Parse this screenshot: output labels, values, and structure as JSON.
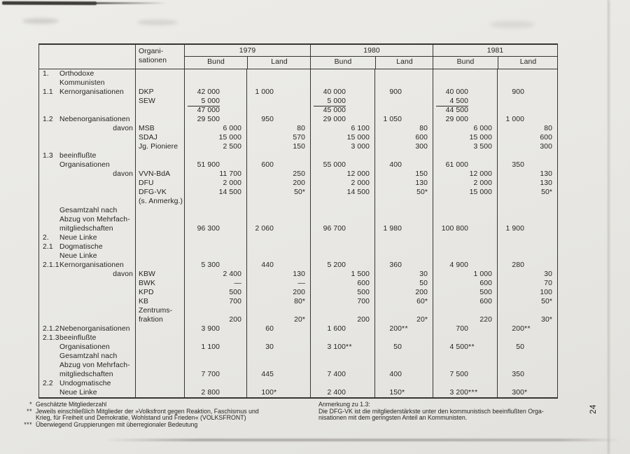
{
  "table": {
    "header": {
      "org_line1": "Organi-",
      "org_line2": "sationen",
      "years": [
        "1979",
        "1980",
        "1981"
      ],
      "bund": "Bund",
      "land": "Land"
    },
    "rows": [
      {
        "n": "1.",
        "l": "Orthodoxe"
      },
      {
        "l": "Kommunisten"
      },
      {
        "n": "1.1",
        "l": "Kernorganisationen",
        "o": "DKP",
        "c": [
          "m:42 000",
          "m:1 000",
          "m:40 000",
          "m:900",
          "m:40 000",
          "m:900"
        ]
      },
      {
        "o": "SEW",
        "c": [
          "u:5 000",
          "",
          "u:5 000",
          "",
          "u:4 500",
          ""
        ]
      },
      {
        "c": [
          "m:47 000",
          "",
          "m:45 000",
          "",
          "m:44 500",
          ""
        ]
      },
      {
        "n": "1.2",
        "l": "Nebenorganisationen",
        "c": [
          "m:29 500",
          "m:950",
          "m:29 000",
          "m:1 050",
          "m:29 000",
          "m:1 000"
        ]
      },
      {
        "l": "davon",
        "ra": true,
        "o": "MSB",
        "c": [
          "s:6 000",
          "s:80",
          "s:6 100",
          "s:80",
          "s:6 000",
          "s:80"
        ]
      },
      {
        "o": "SDAJ",
        "c": [
          "s:15 000",
          "s:570",
          "s:15 000",
          "s:600",
          "s:15 000",
          "s:600"
        ]
      },
      {
        "o": "Jg. Pioniere",
        "c": [
          "s:2 500",
          "s:150",
          "s:3 000",
          "s:300",
          "s:3 500",
          "s:300"
        ]
      },
      {
        "n": "1.3",
        "l": "beeinflußte"
      },
      {
        "l": "Organisationen",
        "c": [
          "m:51 900",
          "m:600",
          "m:55 000",
          "m:400",
          "m:61 000",
          "m:350"
        ]
      },
      {
        "l": "davon",
        "ra": true,
        "o": "VVN-BdA",
        "c": [
          "s:11 700",
          "s:250",
          "s:12 000",
          "s:150",
          "s:12 000",
          "s:130"
        ]
      },
      {
        "o": "DFU",
        "c": [
          "s:2 000",
          "s:200",
          "s:2 000",
          "s:130",
          "s:2 000",
          "s:130"
        ]
      },
      {
        "o": "DFG-VK",
        "c": [
          "s:14 500",
          "s:50*",
          "s:14 500",
          "s:50*",
          "s:15 000",
          "s:50*"
        ]
      },
      {
        "o": "(s. Anmerkg.)"
      },
      {
        "l": "Gesamtzahl nach"
      },
      {
        "l": "Abzug von Mehrfach-"
      },
      {
        "l": "mitgliedschaften",
        "c": [
          "m:96 300",
          "m:2 060",
          "m:96 700",
          "m:1 980",
          "m:100 800",
          "m:1 900"
        ]
      },
      {
        "n": "2.",
        "l": "Neue Linke"
      },
      {
        "n": "2.1",
        "l": "Dogmatische"
      },
      {
        "l": "Neue Linke"
      },
      {
        "n": "2.1.1",
        "l": "Kernorganisationen",
        "c": [
          "m:5 300",
          "m:440",
          "m:5 200",
          "m:360",
          "m:4 900",
          "m:280"
        ]
      },
      {
        "l": "davon",
        "ra": true,
        "o": "KBW",
        "c": [
          "s:2 400",
          "s:130",
          "s:1 500",
          "s:30",
          "s:1 000",
          "s:30"
        ]
      },
      {
        "o": "BWK",
        "c": [
          "s:—",
          "s:—",
          "s:600",
          "s:50",
          "s:600",
          "s:70"
        ]
      },
      {
        "o": "KPD",
        "c": [
          "s:500",
          "s:200",
          "s:500",
          "s:200",
          "s:500",
          "s:100"
        ]
      },
      {
        "o": "KB",
        "c": [
          "s:700",
          "s:80*",
          "s:700",
          "s:60*",
          "s:600",
          "s:50*"
        ]
      },
      {
        "o": "Zentrums-"
      },
      {
        "o": "fraktion",
        "c": [
          "s:200",
          "s:20*",
          "s:200",
          "s:20*",
          "s:220",
          "s:30*"
        ]
      },
      {
        "n": "2.1.2",
        "l": "Nebenorganisationen",
        "c": [
          "m:3 900",
          "m:60",
          "m:1 600",
          "m:200**",
          "m:700",
          "m:200**"
        ]
      },
      {
        "n": "2.1.3",
        "l": "beeinflußte"
      },
      {
        "l": "Organisationen",
        "c": [
          "m:1 100",
          "m:30",
          "m:3 100**",
          "m:50",
          "m:4 500**",
          "m:50"
        ]
      },
      {
        "l": "Gesamtzahl nach"
      },
      {
        "l": "Abzug von Mehrfach-"
      },
      {
        "l": "mitgliedschaften",
        "c": [
          "m:7 700",
          "m:445",
          "m:7 400",
          "m:400",
          "m:7 500",
          "m:350"
        ]
      },
      {
        "n": "2.2",
        "l": "Undogmatische"
      },
      {
        "l": "Neue Linke",
        "c": [
          "m:2 800",
          "m:100*",
          "m:2 400",
          "m:150*",
          "m:3 200***",
          "m:300*"
        ]
      }
    ]
  },
  "footnotes": {
    "left": [
      {
        "marker": "*",
        "text": "Geschätzte Mitgliederzahl"
      },
      {
        "marker": "**",
        "text": "Jeweils einschließlich Mitglieder der »Volksfront gegen Reaktion, Faschismus und\nKrieg, für Freiheit und Demokratie, Wohlstand und Frieden« (VOLKSFRONT)"
      },
      {
        "marker": "***",
        "text": "Überwiegend Gruppierungen mit überregionaler Bedeutung"
      }
    ],
    "right_title": "Anmerkung zu 1.3:",
    "right_text": "Die DFG-VK ist die mitgliederstärkste unter den kommunistisch beeinflußten Orga-\nnisationen mit dem geringsten Anteil an Kommunisten."
  },
  "page_number": "24"
}
